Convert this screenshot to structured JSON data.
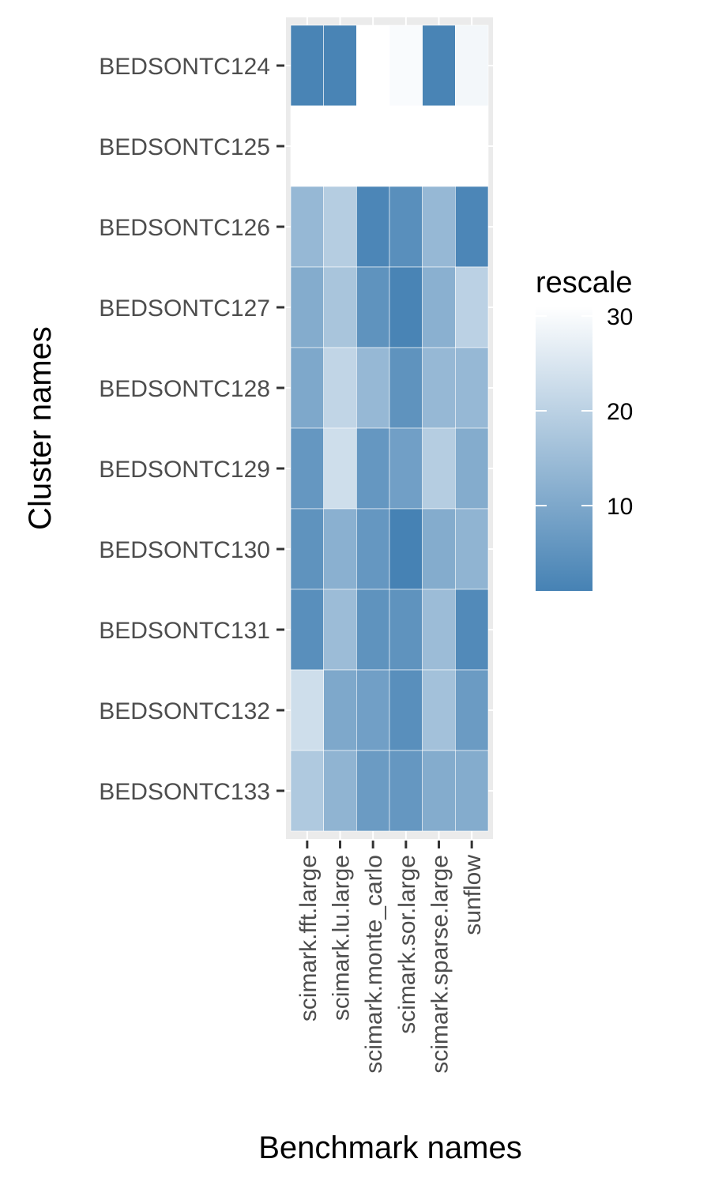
{
  "chart_data": {
    "type": "heatmap",
    "xlabel": "Benchmark names",
    "ylabel": "Cluster names",
    "x_categories": [
      "scimark.fft.large",
      "scimark.lu.large",
      "scimark.monte_carlo",
      "scimark.sor.large",
      "scimark.sparse.large",
      "sunflow"
    ],
    "y_categories": [
      "BEDSONTC124",
      "BEDSONTC125",
      "BEDSONTC126",
      "BEDSONTC127",
      "BEDSONTC128",
      "BEDSONTC129",
      "BEDSONTC130",
      "BEDSONTC131",
      "BEDSONTC132",
      "BEDSONTC133"
    ],
    "values": [
      [
        1.5,
        1.5,
        31,
        30,
        1.5,
        29
      ],
      [
        31,
        31,
        31,
        31,
        31,
        31
      ],
      [
        14,
        19,
        2,
        4,
        14,
        2
      ],
      [
        11,
        17,
        5,
        1.5,
        12,
        20
      ],
      [
        10,
        21,
        14,
        5,
        14,
        14
      ],
      [
        6,
        23,
        6,
        8,
        19,
        11
      ],
      [
        5,
        12,
        6,
        1,
        11,
        13
      ],
      [
        4,
        15,
        5,
        5,
        15,
        3
      ],
      [
        23,
        10,
        8,
        4,
        16,
        7
      ],
      [
        18,
        13,
        7,
        6,
        11,
        11
      ]
    ],
    "legend": {
      "title": "rescale",
      "ticks": [
        10,
        20,
        30
      ],
      "range": [
        1,
        31
      ],
      "low_color": "#4682b4",
      "high_color": "#ffffff"
    },
    "panel_background": "#ebebeb",
    "grid_color": "#ffffff"
  }
}
